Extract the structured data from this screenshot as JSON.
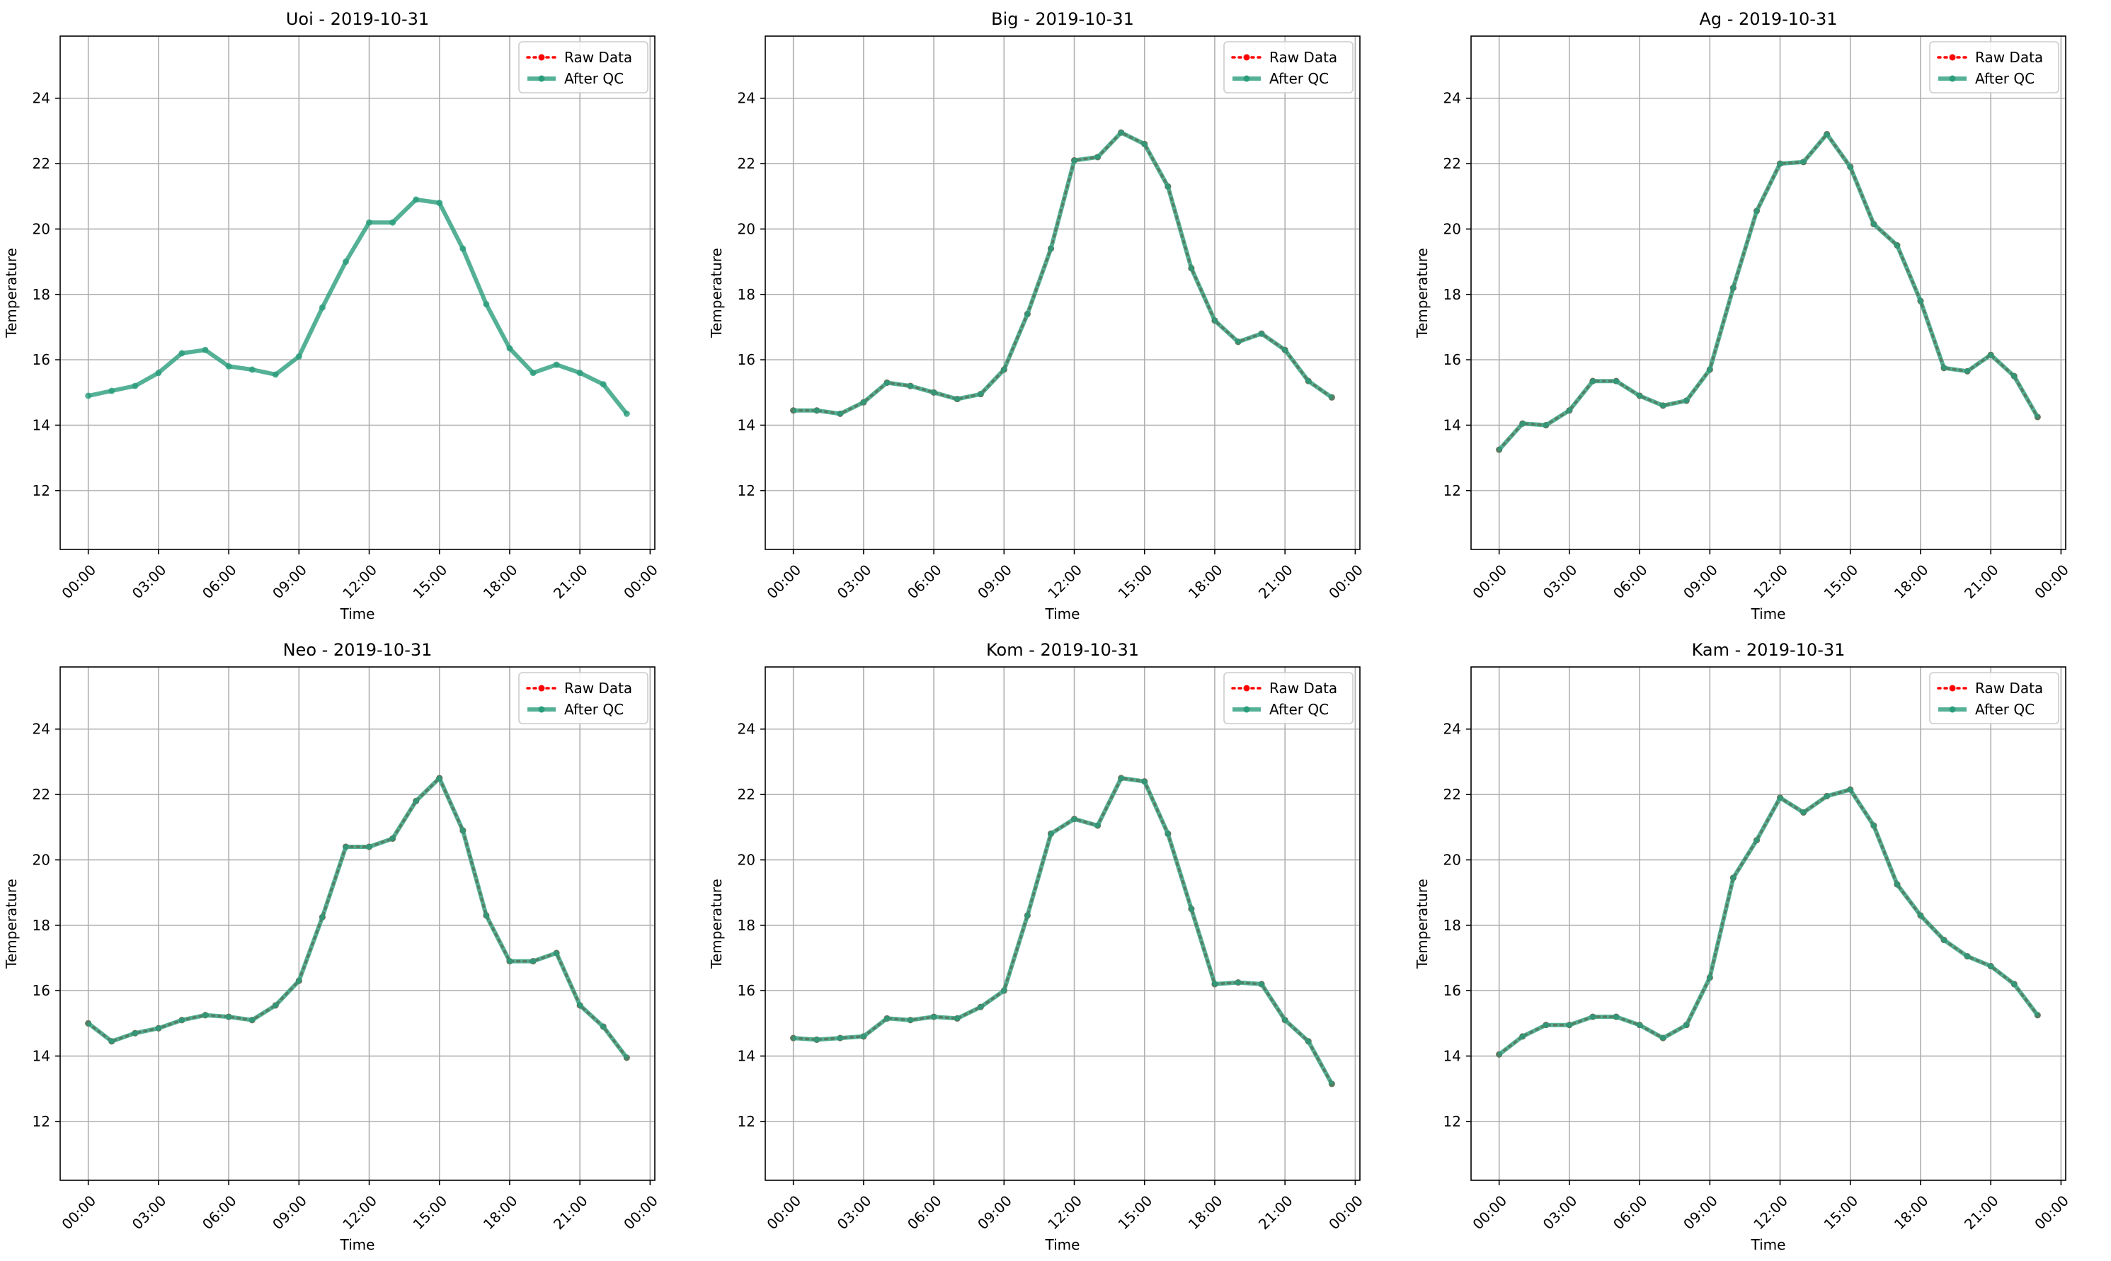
{
  "figure": {
    "raw_color": "#ff0000",
    "qc_color": "#2a9d7c",
    "grid_color": "#b0b0b0",
    "y_label": "Temperature",
    "x_label": "Time",
    "legend": {
      "raw_label": "Raw Data",
      "qc_label": "After QC",
      "location": "upper right"
    },
    "x_tick_labels": [
      "00:00",
      "03:00",
      "06:00",
      "09:00",
      "12:00",
      "15:00",
      "18:00",
      "21:00",
      "00:00"
    ]
  },
  "chart_data": [
    {
      "type": "line",
      "title": "Uoi - 2019-10-31",
      "xlabel": "Time",
      "ylabel": "Temperature",
      "xlim_hours": [
        -1.2,
        24.2
      ],
      "ylim": [
        10.2,
        25.9
      ],
      "yticks": [
        12,
        14,
        16,
        18,
        20,
        22,
        24
      ],
      "grid": true,
      "legend_position": "top-right",
      "raw_visible": false,
      "x_hours": [
        0,
        1,
        2,
        3,
        4,
        5,
        6,
        7,
        8,
        9,
        10,
        11,
        12,
        13,
        14,
        15,
        16,
        17,
        18,
        19,
        20,
        21,
        22,
        23
      ],
      "series": [
        {
          "name": "Raw Data",
          "values": [
            14.9,
            15.05,
            15.2,
            15.6,
            16.2,
            16.3,
            15.8,
            15.7,
            15.55,
            16.1,
            17.6,
            19.0,
            20.2,
            20.2,
            20.9,
            20.8,
            19.4,
            17.7,
            16.35,
            15.6,
            15.85,
            15.6,
            15.25,
            14.35
          ]
        },
        {
          "name": "After QC",
          "values": [
            14.9,
            15.05,
            15.2,
            15.6,
            16.2,
            16.3,
            15.8,
            15.7,
            15.55,
            16.1,
            17.6,
            19.0,
            20.2,
            20.2,
            20.9,
            20.8,
            19.4,
            17.7,
            16.35,
            15.6,
            15.85,
            15.6,
            15.25,
            14.35
          ]
        }
      ]
    },
    {
      "type": "line",
      "title": "Big - 2019-10-31",
      "xlabel": "Time",
      "ylabel": "Temperature",
      "xlim_hours": [
        -1.2,
        24.2
      ],
      "ylim": [
        10.2,
        25.9
      ],
      "yticks": [
        12,
        14,
        16,
        18,
        20,
        22,
        24
      ],
      "grid": true,
      "legend_position": "top-right",
      "raw_visible": true,
      "x_hours": [
        0,
        1,
        2,
        3,
        4,
        5,
        6,
        7,
        8,
        9,
        10,
        11,
        12,
        13,
        14,
        15,
        16,
        17,
        18,
        19,
        20,
        21,
        22,
        23
      ],
      "series": [
        {
          "name": "Raw Data",
          "values": [
            14.45,
            14.45,
            14.35,
            14.7,
            15.3,
            15.2,
            15.0,
            14.8,
            14.95,
            15.7,
            17.4,
            19.4,
            22.1,
            22.2,
            22.95,
            22.6,
            21.3,
            18.8,
            17.2,
            16.55,
            16.8,
            16.3,
            15.35,
            14.85
          ]
        },
        {
          "name": "After QC",
          "values": [
            14.45,
            14.45,
            14.35,
            14.7,
            15.3,
            15.2,
            15.0,
            14.8,
            14.95,
            15.7,
            17.4,
            19.4,
            22.1,
            22.2,
            22.95,
            22.6,
            21.3,
            18.8,
            17.2,
            16.55,
            16.8,
            16.3,
            15.35,
            14.85
          ]
        }
      ]
    },
    {
      "type": "line",
      "title": "Ag - 2019-10-31",
      "xlabel": "Time",
      "ylabel": "Temperature",
      "xlim_hours": [
        -1.2,
        24.2
      ],
      "ylim": [
        10.2,
        25.9
      ],
      "yticks": [
        12,
        14,
        16,
        18,
        20,
        22,
        24
      ],
      "grid": true,
      "legend_position": "top-right",
      "raw_visible": true,
      "x_hours": [
        0,
        1,
        2,
        3,
        4,
        5,
        6,
        7,
        8,
        9,
        10,
        11,
        12,
        13,
        14,
        15,
        16,
        17,
        18,
        19,
        20,
        21,
        22,
        23
      ],
      "series": [
        {
          "name": "Raw Data",
          "values": [
            13.25,
            14.05,
            14.0,
            14.45,
            15.35,
            15.35,
            14.9,
            14.6,
            14.75,
            15.7,
            18.2,
            20.55,
            22.0,
            22.05,
            22.9,
            21.9,
            20.15,
            19.5,
            17.8,
            15.75,
            15.65,
            16.15,
            15.5,
            14.25
          ]
        },
        {
          "name": "After QC",
          "values": [
            13.25,
            14.05,
            14.0,
            14.45,
            15.35,
            15.35,
            14.9,
            14.6,
            14.75,
            15.7,
            18.2,
            20.55,
            22.0,
            22.05,
            22.9,
            21.9,
            20.15,
            19.5,
            17.8,
            15.75,
            15.65,
            16.15,
            15.5,
            14.25
          ]
        }
      ]
    },
    {
      "type": "line",
      "title": "Neo - 2019-10-31",
      "xlabel": "Time",
      "ylabel": "Temperature",
      "xlim_hours": [
        -1.2,
        24.2
      ],
      "ylim": [
        10.2,
        25.9
      ],
      "yticks": [
        12,
        14,
        16,
        18,
        20,
        22,
        24
      ],
      "grid": true,
      "legend_position": "top-right",
      "raw_visible": true,
      "x_hours": [
        0,
        1,
        2,
        3,
        4,
        5,
        6,
        7,
        8,
        9,
        10,
        11,
        12,
        13,
        14,
        15,
        16,
        17,
        18,
        19,
        20,
        21,
        22,
        23
      ],
      "series": [
        {
          "name": "Raw Data",
          "values": [
            15.0,
            14.45,
            14.7,
            14.85,
            15.1,
            15.25,
            15.2,
            15.1,
            15.55,
            16.3,
            18.25,
            20.4,
            20.4,
            20.65,
            21.8,
            22.5,
            20.9,
            18.3,
            16.9,
            16.9,
            17.15,
            15.55,
            14.9,
            13.95
          ]
        },
        {
          "name": "After QC",
          "values": [
            15.0,
            14.45,
            14.7,
            14.85,
            15.1,
            15.25,
            15.2,
            15.1,
            15.55,
            16.3,
            18.25,
            20.4,
            20.4,
            20.65,
            21.8,
            22.5,
            20.9,
            18.3,
            16.9,
            16.9,
            17.15,
            15.55,
            14.9,
            13.95
          ]
        }
      ]
    },
    {
      "type": "line",
      "title": "Kom - 2019-10-31",
      "xlabel": "Time",
      "ylabel": "Temperature",
      "xlim_hours": [
        -1.2,
        24.2
      ],
      "ylim": [
        10.2,
        25.9
      ],
      "yticks": [
        12,
        14,
        16,
        18,
        20,
        22,
        24
      ],
      "grid": true,
      "legend_position": "top-right",
      "raw_visible": true,
      "x_hours": [
        0,
        1,
        2,
        3,
        4,
        5,
        6,
        7,
        8,
        9,
        10,
        11,
        12,
        13,
        14,
        15,
        16,
        17,
        18,
        19,
        20,
        21,
        22,
        23
      ],
      "series": [
        {
          "name": "Raw Data",
          "values": [
            14.55,
            14.5,
            14.55,
            14.6,
            15.15,
            15.1,
            15.2,
            15.15,
            15.5,
            16.0,
            18.3,
            20.8,
            21.25,
            21.05,
            22.5,
            22.4,
            20.8,
            18.5,
            16.2,
            16.25,
            16.2,
            15.1,
            14.45,
            13.15
          ]
        },
        {
          "name": "After QC",
          "values": [
            14.55,
            14.5,
            14.55,
            14.6,
            15.15,
            15.1,
            15.2,
            15.15,
            15.5,
            16.0,
            18.3,
            20.8,
            21.25,
            21.05,
            22.5,
            22.4,
            20.8,
            18.5,
            16.2,
            16.25,
            16.2,
            15.1,
            14.45,
            13.15
          ]
        }
      ]
    },
    {
      "type": "line",
      "title": "Kam - 2019-10-31",
      "xlabel": "Time",
      "ylabel": "Temperature",
      "xlim_hours": [
        -1.2,
        24.2
      ],
      "ylim": [
        10.2,
        25.9
      ],
      "yticks": [
        12,
        14,
        16,
        18,
        20,
        22,
        24
      ],
      "grid": true,
      "legend_position": "top-right",
      "raw_visible": true,
      "x_hours": [
        0,
        1,
        2,
        3,
        4,
        5,
        6,
        7,
        8,
        9,
        10,
        11,
        12,
        13,
        14,
        15,
        16,
        17,
        18,
        19,
        20,
        21,
        22,
        23
      ],
      "series": [
        {
          "name": "Raw Data",
          "values": [
            14.05,
            14.6,
            14.95,
            14.95,
            15.2,
            15.2,
            14.95,
            14.55,
            14.95,
            16.4,
            19.45,
            20.6,
            21.9,
            21.45,
            21.95,
            22.15,
            21.05,
            19.25,
            18.3,
            17.55,
            17.05,
            16.75,
            16.2,
            15.25
          ]
        },
        {
          "name": "After QC",
          "values": [
            14.05,
            14.6,
            14.95,
            14.95,
            15.2,
            15.2,
            14.95,
            14.55,
            14.95,
            16.4,
            19.45,
            20.6,
            21.9,
            21.45,
            21.95,
            22.15,
            21.05,
            19.25,
            18.3,
            17.55,
            17.05,
            16.75,
            16.2,
            15.25
          ]
        }
      ]
    }
  ]
}
